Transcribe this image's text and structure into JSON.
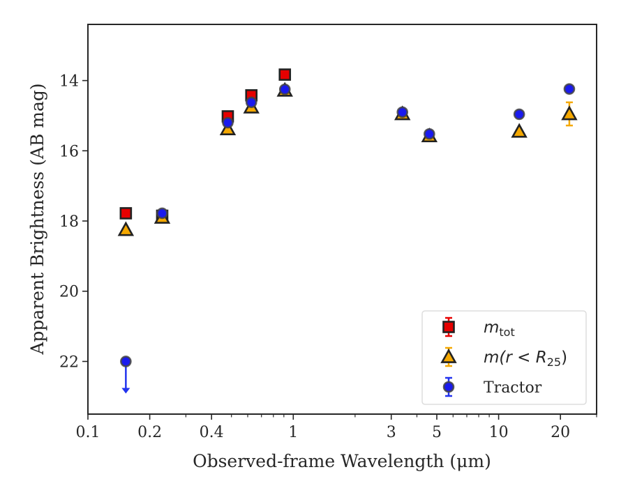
{
  "chart_data": {
    "type": "scatter",
    "xlabel": "Observed-frame Wavelength (μm)",
    "ylabel": "Apparent Brightness (AB mag)",
    "xscale": "log",
    "xlim": [
      0.1,
      30
    ],
    "ylim": [
      23.5,
      12.4
    ],
    "y_inverted": true,
    "x_ticks": [
      {
        "value": 0.1,
        "label": "0.1"
      },
      {
        "value": 0.2,
        "label": "0.2"
      },
      {
        "value": 0.4,
        "label": "0.4"
      },
      {
        "value": 1,
        "label": "1"
      },
      {
        "value": 3,
        "label": "3"
      },
      {
        "value": 5,
        "label": "5"
      },
      {
        "value": 10,
        "label": "10"
      },
      {
        "value": 20,
        "label": "20"
      }
    ],
    "y_ticks": [
      {
        "value": 14,
        "label": "14"
      },
      {
        "value": 16,
        "label": "16"
      },
      {
        "value": 18,
        "label": "18"
      },
      {
        "value": 20,
        "label": "20"
      },
      {
        "value": 22,
        "label": "22"
      }
    ],
    "legend_position": "lower-right",
    "series": [
      {
        "name": "m_tot",
        "legend_main": "m",
        "legend_sub": "tot",
        "marker": "square",
        "color": "#e60000",
        "edge_color": "#222222",
        "error_color": "#e60000",
        "points": [
          {
            "x": 0.153,
            "y": 17.78
          },
          {
            "x": 0.23,
            "y": 17.85
          },
          {
            "x": 0.48,
            "y": 15.02
          },
          {
            "x": 0.625,
            "y": 14.42
          },
          {
            "x": 0.91,
            "y": 13.83
          }
        ]
      },
      {
        "name": "m(r < R_25)",
        "legend_main": "m(r < R",
        "legend_sub": "25",
        "legend_after": ")",
        "marker": "triangle",
        "color": "#f5a800",
        "edge_color": "#222222",
        "error_color": "#f5a800",
        "points": [
          {
            "x": 0.153,
            "y": 18.25
          },
          {
            "x": 0.23,
            "y": 17.9
          },
          {
            "x": 0.48,
            "y": 15.38
          },
          {
            "x": 0.625,
            "y": 14.76
          },
          {
            "x": 0.91,
            "y": 14.28
          },
          {
            "x": 3.4,
            "y": 14.95
          },
          {
            "x": 4.6,
            "y": 15.58
          },
          {
            "x": 12.6,
            "y": 15.45
          },
          {
            "x": 22.1,
            "y": 14.95,
            "err": 0.33
          }
        ]
      },
      {
        "name": "Tractor",
        "legend_main": "Tractor",
        "marker": "circle",
        "color": "#1a1aee",
        "edge_color": "#444444",
        "error_color": "#2233ee",
        "points": [
          {
            "x": 0.153,
            "y": 22.0,
            "upper_limit": true
          },
          {
            "x": 0.23,
            "y": 17.78
          },
          {
            "x": 0.48,
            "y": 15.2
          },
          {
            "x": 0.625,
            "y": 14.62
          },
          {
            "x": 0.91,
            "y": 14.25
          },
          {
            "x": 3.4,
            "y": 14.9
          },
          {
            "x": 4.6,
            "y": 15.52
          },
          {
            "x": 12.6,
            "y": 14.96
          },
          {
            "x": 22.1,
            "y": 14.24
          }
        ]
      }
    ]
  }
}
